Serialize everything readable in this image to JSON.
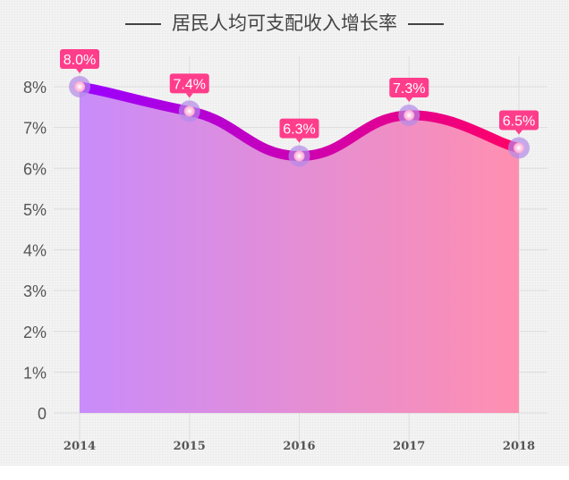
{
  "chart_data": {
    "type": "area",
    "title": "居民人均可支配收入增长率",
    "categories": [
      "2014",
      "2015",
      "2016",
      "2017",
      "2018"
    ],
    "values": [
      8.0,
      7.4,
      6.3,
      7.3,
      6.5
    ],
    "data_labels": [
      "8.0%",
      "7.4%",
      "6.3%",
      "7.3%",
      "6.5%"
    ],
    "y_ticks": [
      0,
      1,
      2,
      3,
      4,
      5,
      6,
      7,
      8
    ],
    "y_tick_labels": [
      "0",
      "1%",
      "2%",
      "3%",
      "4%",
      "5%",
      "6%",
      "7%",
      "8%"
    ],
    "ylim": [
      0,
      8
    ],
    "xlabel": "",
    "ylabel": "",
    "grid": true,
    "colors": {
      "line_start": "#9900ff",
      "line_end": "#ff0066",
      "area_start": "#c98cfa",
      "area_end": "#ff8fb0",
      "label_bg": "#ff3d8b",
      "marker": "#ff9fd0"
    }
  }
}
